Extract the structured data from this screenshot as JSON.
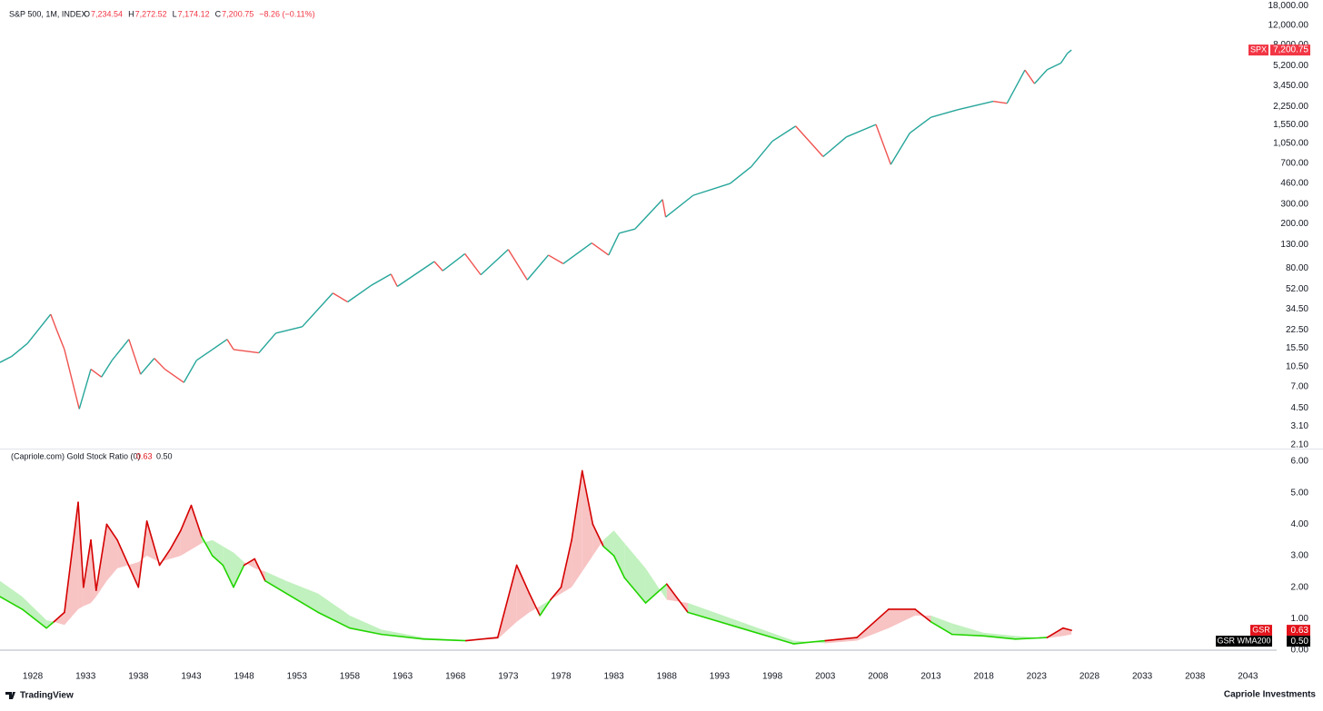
{
  "header": {
    "title": "S&P 500, 1M, INDEX",
    "ohlc": [
      {
        "key": "O",
        "text": "7,234.54"
      },
      {
        "key": "H",
        "text": "7,272.52"
      },
      {
        "key": "L",
        "text": "7,174.12"
      },
      {
        "key": "C",
        "text": "7,200.75"
      }
    ],
    "change": "−8.26 (−0.11%)"
  },
  "chart_data": [
    {
      "type": "line",
      "log_y": true,
      "grid": false,
      "xlim": [
        1924.9,
        2044.0
      ],
      "ylim": [
        2.02,
        20200
      ],
      "yticks": [
        {
          "value": 18000,
          "label": "18,000.00"
        },
        {
          "value": 12000,
          "label": "12,000.00"
        },
        {
          "value": 8000,
          "label": "8,000.00"
        },
        {
          "value": 5200,
          "label": "5,200.00"
        },
        {
          "value": 3450,
          "label": "3,450.00"
        },
        {
          "value": 2250,
          "label": "2,250.00"
        },
        {
          "value": 1550,
          "label": "1,550.00"
        },
        {
          "value": 1050,
          "label": "1,050.00"
        },
        {
          "value": 700,
          "label": "700.00"
        },
        {
          "value": 460,
          "label": "460.00"
        },
        {
          "value": 300,
          "label": "300.00"
        },
        {
          "value": 200,
          "label": "200.00"
        },
        {
          "value": 130,
          "label": "130.00"
        },
        {
          "value": 80,
          "label": "80.00"
        },
        {
          "value": 52,
          "label": "52.00"
        },
        {
          "value": 34.5,
          "label": "34.50"
        },
        {
          "value": 22.5,
          "label": "22.50"
        },
        {
          "value": 15.5,
          "label": "15.50"
        },
        {
          "value": 10.5,
          "label": "10.50"
        },
        {
          "value": 7,
          "label": "7.00"
        },
        {
          "value": 4.5,
          "label": "4.50"
        },
        {
          "value": 3.1,
          "label": "3.10"
        },
        {
          "value": 2.1,
          "label": "2.10"
        }
      ],
      "series": [
        {
          "name": "SPX",
          "up_color": "#26a69a",
          "down_color": "#ef5350",
          "tag_color": "#f23645",
          "last_value_label": "7,200.75",
          "x": [
            1924.9,
            1926,
            1927.5,
            1929.7,
            1930.3,
            1931,
            1932.4,
            1933.5,
            1934.5,
            1935.5,
            1937.1,
            1938.2,
            1939.5,
            1940.5,
            1942.3,
            1943.5,
            1945,
            1946.4,
            1947,
            1949.4,
            1951,
            1953.5,
            1956.4,
            1957.8,
            1960,
            1961.9,
            1962.5,
            1966,
            1966.8,
            1968.9,
            1970.4,
            1973,
            1974.8,
            1976.8,
            1978.2,
            1980.9,
            1982.5,
            1983.5,
            1985,
            1987.6,
            1987.9,
            1990.5,
            1994,
            1996,
            1998,
            2000.2,
            2002.8,
            2005,
            2007.8,
            2009.2,
            2011,
            2013,
            2015.5,
            2018.9,
            2020.2,
            2021.9,
            2022.8,
            2024,
            2025.3,
            2025.9,
            2026.3
          ],
          "values": [
            11.5,
            13,
            17,
            31,
            22,
            15,
            4.4,
            10,
            8.5,
            12,
            18.5,
            9,
            12.5,
            10,
            7.6,
            12,
            15,
            18.5,
            15,
            14,
            21,
            24,
            48,
            40,
            56,
            71,
            55,
            92,
            76,
            108,
            70,
            118,
            63,
            105,
            88,
            135,
            105,
            165,
            180,
            330,
            230,
            360,
            460,
            650,
            1100,
            1500,
            800,
            1200,
            1550,
            680,
            1300,
            1800,
            2100,
            2500,
            2400,
            4770,
            3600,
            4800,
            5500,
            6700,
            7200.75
          ]
        }
      ]
    },
    {
      "type": "band",
      "title": "(Capriole.com) Gold Stock Ratio (0)",
      "xlim": [
        1924.9,
        2044.0
      ],
      "ylim": [
        -0.55,
        6.32
      ],
      "yticks": [
        {
          "value": 0,
          "label": "0.00"
        },
        {
          "value": 1,
          "label": "1.00"
        },
        {
          "value": 2,
          "label": "2.00"
        },
        {
          "value": 3,
          "label": "3.00"
        },
        {
          "value": 4,
          "label": "4.00"
        },
        {
          "value": 5,
          "label": "5.00"
        },
        {
          "value": 6,
          "label": "6.00"
        }
      ],
      "xticks": [
        1928,
        1933,
        1938,
        1943,
        1948,
        1953,
        1958,
        1963,
        1968,
        1973,
        1978,
        1983,
        1988,
        1993,
        1998,
        2003,
        2008,
        2013,
        2018,
        2023,
        2028,
        2033,
        2038,
        2043
      ],
      "above_color": "#d50000",
      "below_color": "#22d400",
      "above_fill": "#f7b9b9",
      "below_fill": "#b6efb3",
      "x": [
        1924.9,
        1927,
        1929.3,
        1930,
        1931,
        1932.3,
        1932.8,
        1933.5,
        1934,
        1935,
        1936,
        1938,
        1938.8,
        1940,
        1941,
        1942,
        1943,
        1944,
        1945,
        1946,
        1947,
        1948,
        1949,
        1950,
        1952,
        1955,
        1958,
        1961,
        1965,
        1969,
        1972,
        1973.8,
        1975,
        1976,
        1977,
        1978,
        1979,
        1980,
        1981,
        1982,
        1983,
        1984,
        1986,
        1988,
        1990,
        1995,
        2000,
        2003,
        2006,
        2009,
        2011.5,
        2013,
        2015,
        2018,
        2021,
        2024,
        2025.5,
        2026.3
      ],
      "series": [
        {
          "name": "GSR",
          "color": "#e3131b",
          "last_value_label": "0.63",
          "values": [
            1.7,
            1.3,
            0.7,
            0.9,
            1.2,
            4.7,
            2.0,
            3.5,
            1.9,
            4.0,
            3.5,
            2.0,
            4.1,
            2.7,
            3.2,
            3.8,
            4.6,
            3.6,
            3.0,
            2.7,
            2.0,
            2.7,
            2.9,
            2.2,
            1.8,
            1.2,
            0.7,
            0.5,
            0.35,
            0.3,
            0.4,
            2.7,
            1.8,
            1.1,
            1.6,
            2.0,
            3.5,
            5.7,
            4.0,
            3.3,
            3.0,
            2.3,
            1.5,
            2.1,
            1.2,
            0.7,
            0.2,
            0.3,
            0.4,
            1.3,
            1.3,
            0.9,
            0.5,
            0.45,
            0.35,
            0.4,
            0.7,
            0.63
          ]
        },
        {
          "name": "GSR WMA200",
          "color": "#000000",
          "last_value_label": "0.50",
          "values": [
            2.2,
            1.7,
            0.95,
            0.9,
            0.8,
            1.3,
            1.4,
            1.5,
            1.7,
            2.2,
            2.6,
            2.8,
            3.0,
            2.8,
            2.9,
            3.0,
            3.2,
            3.4,
            3.5,
            3.3,
            3.1,
            2.8,
            2.6,
            2.5,
            2.2,
            1.8,
            1.1,
            0.65,
            0.4,
            0.32,
            0.35,
            0.9,
            1.2,
            1.4,
            1.6,
            1.8,
            2.0,
            2.5,
            3.0,
            3.5,
            3.8,
            3.4,
            2.6,
            1.6,
            1.5,
            0.9,
            0.3,
            0.22,
            0.3,
            0.7,
            1.1,
            1.1,
            0.85,
            0.55,
            0.45,
            0.38,
            0.45,
            0.5
          ]
        }
      ]
    }
  ],
  "footer": {
    "left": "TradingView",
    "right": "Capriole Investments"
  }
}
